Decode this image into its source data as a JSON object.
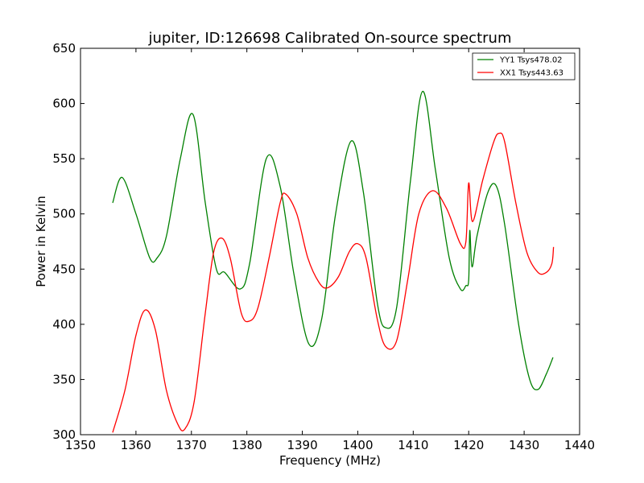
{
  "chart_data": {
    "type": "line",
    "title": "jupiter, ID:126698 Calibrated On-source spectrum",
    "xlabel": "Frequency (MHz)",
    "ylabel": "Power in Kelvin",
    "xlim": [
      1350,
      1440
    ],
    "ylim": [
      300,
      650
    ],
    "xticks": [
      "1350",
      "1360",
      "1370",
      "1380",
      "1390",
      "1400",
      "1410",
      "1420",
      "1430",
      "1440"
    ],
    "yticks": [
      "300",
      "350",
      "400",
      "450",
      "500",
      "550",
      "600",
      "650"
    ],
    "grid": false,
    "legend_position": "top-right",
    "series": [
      {
        "name": "YY1 Tsys478.02",
        "color": "#008000",
        "x": [
          1355.8,
          1357.5,
          1360.0,
          1362.5,
          1363.8,
          1365.5,
          1368.0,
          1370.3,
          1372.5,
          1374.5,
          1376.0,
          1378.8,
          1380.5,
          1383.5,
          1386.0,
          1388.5,
          1391.2,
          1393.5,
          1396.0,
          1398.8,
          1401.0,
          1403.5,
          1405.0,
          1407.0,
          1409.5,
          1411.7,
          1414.0,
          1416.5,
          1418.5,
          1419.5,
          1420.0,
          1420.2,
          1420.6,
          1421.5,
          1423.5,
          1425.0,
          1426.5,
          1429.0,
          1431.0,
          1432.5,
          1434.0,
          1435.2
        ],
        "y": [
          510,
          533,
          500,
          460,
          460,
          480,
          550,
          590,
          510,
          450,
          447,
          432,
          455,
          550,
          525,
          445,
          382,
          405,
          500,
          566,
          520,
          420,
          397,
          415,
          530,
          611,
          540,
          460,
          432,
          435,
          440,
          485,
          452,
          480,
          520,
          525,
          490,
          400,
          350,
          341,
          355,
          370
        ]
      },
      {
        "name": "XX1 Tsys443.63",
        "color": "#ff0000",
        "x": [
          1355.8,
          1358.0,
          1360.0,
          1361.7,
          1363.5,
          1365.5,
          1367.5,
          1368.8,
          1370.5,
          1372.5,
          1374.0,
          1375.5,
          1377.0,
          1379.0,
          1380.5,
          1382.0,
          1384.0,
          1386.0,
          1387.0,
          1389.0,
          1391.0,
          1393.0,
          1394.5,
          1396.5,
          1398.5,
          1400.0,
          1401.5,
          1403.5,
          1405.0,
          1407.0,
          1409.0,
          1411.0,
          1413.5,
          1416.0,
          1418.5,
          1419.5,
          1420.0,
          1420.7,
          1422.5,
          1424.5,
          1425.5,
          1426.5,
          1428.5,
          1430.5,
          1432.5,
          1434.0,
          1435.0,
          1435.3
        ],
        "y": [
          302,
          340,
          390,
          413,
          395,
          340,
          310,
          305,
          330,
          410,
          465,
          478,
          460,
          410,
          403,
          415,
          460,
          510,
          518,
          500,
          460,
          438,
          433,
          443,
          466,
          473,
          460,
          405,
          380,
          385,
          440,
          500,
          521,
          505,
          473,
          475,
          528,
          493,
          530,
          565,
          573,
          565,
          510,
          465,
          447,
          447,
          455,
          470
        ]
      }
    ]
  }
}
